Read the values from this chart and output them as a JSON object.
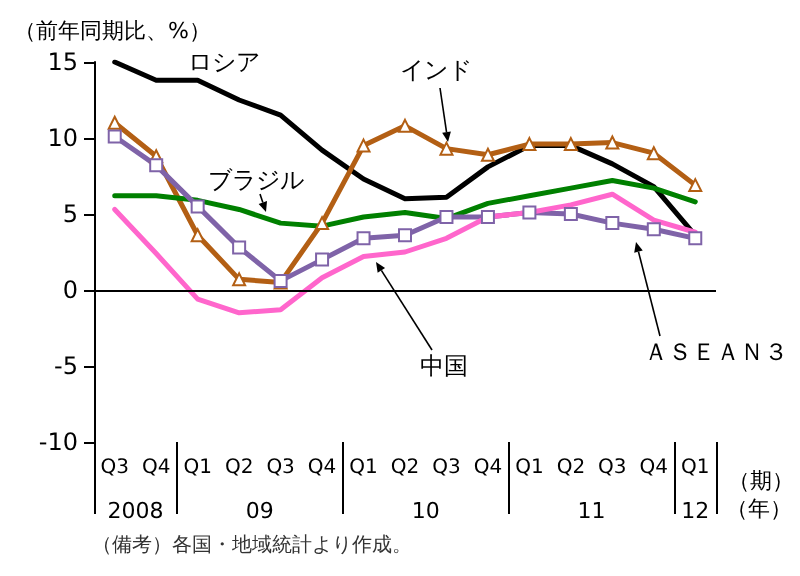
{
  "chart_data": {
    "type": "line",
    "ylabel": "（前年同期比、%）",
    "xlabel": "（期）",
    "categories": [
      "Q3",
      "Q4",
      "Q1",
      "Q2",
      "Q3",
      "Q4",
      "Q1",
      "Q2",
      "Q3",
      "Q4",
      "Q1",
      "Q2",
      "Q3",
      "Q4",
      "Q1"
    ],
    "ylim": [
      -10,
      15
    ],
    "yticks": [
      -10,
      -5,
      0,
      5,
      10,
      15
    ],
    "grid": false,
    "ref_lines": [
      {
        "axis": "y",
        "value": 0,
        "color": "#000000"
      }
    ],
    "legend": false,
    "series": [
      {
        "name": "ロシア",
        "color": "#000000",
        "marker": "none",
        "values": [
          15.0,
          13.8,
          13.8,
          12.5,
          11.5,
          9.2,
          7.3,
          6.0,
          6.1,
          8.1,
          9.5,
          9.5,
          8.3,
          6.8,
          3.6
        ]
      },
      {
        "name": "インド",
        "color": "#b35f14",
        "marker": "triangle",
        "values": [
          11.0,
          8.8,
          3.6,
          0.7,
          0.5,
          4.4,
          9.5,
          10.8,
          9.3,
          8.9,
          9.6,
          9.6,
          9.7,
          9.0,
          6.9
        ]
      },
      {
        "name": "ブラジル",
        "color": "#008000",
        "marker": "none",
        "values": [
          6.2,
          6.2,
          5.9,
          5.3,
          4.4,
          4.2,
          4.8,
          5.1,
          4.7,
          5.7,
          6.2,
          6.7,
          7.2,
          6.7,
          5.8
        ]
      },
      {
        "name": "ＡＳＥＡＮ３",
        "color": "#7f63a8",
        "marker": "square",
        "values": [
          10.1,
          8.2,
          5.5,
          2.8,
          0.6,
          2.0,
          3.4,
          3.6,
          4.8,
          4.8,
          5.1,
          5.0,
          4.4,
          4.0,
          3.4
        ]
      },
      {
        "name": "中国",
        "color": "#ff66cc",
        "marker": "none",
        "values": [
          5.3,
          2.4,
          -0.6,
          -1.5,
          -1.3,
          0.8,
          2.2,
          2.5,
          3.4,
          4.8,
          5.1,
          5.6,
          6.3,
          4.6,
          3.8
        ]
      }
    ],
    "annotations": [
      "2008",
      "09",
      "10",
      "11",
      "12",
      "（年）",
      "（備考）各国・地域統計より作成。"
    ]
  }
}
